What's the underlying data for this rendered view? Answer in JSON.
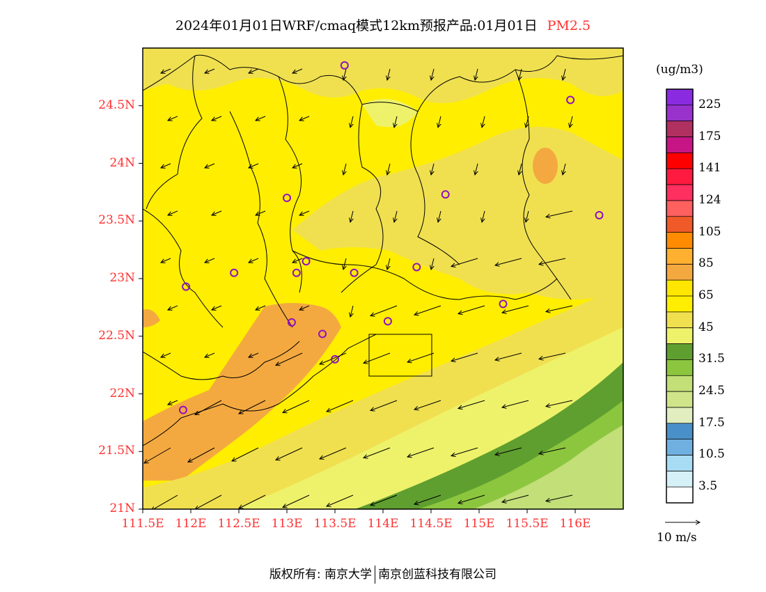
{
  "title": {
    "main": "2024年01月01日WRF/cmaq模式12km预报产品:01月01日",
    "pollutant": "PM2.5"
  },
  "axes": {
    "lat_labels": [
      "24.5N",
      "24N",
      "23.5N",
      "23N",
      "22.5N",
      "22N",
      "21.5N",
      "21N"
    ],
    "lon_labels": [
      "111.5E",
      "112E",
      "112.5E",
      "113E",
      "113.5E",
      "114E",
      "114.5E",
      "115E",
      "115.5E",
      "116E"
    ],
    "lat_range": [
      21.0,
      25.0
    ],
    "lon_range": [
      111.5,
      116.5
    ]
  },
  "colorbar": {
    "unit": "(ug/m3)",
    "labels": [
      "225",
      "175",
      "141",
      "124",
      "105",
      "85",
      "65",
      "45",
      "31.5",
      "24.5",
      "17.5",
      "10.5",
      "3.5"
    ],
    "colors": [
      "#8a2be2",
      "#9932cc",
      "#b03060",
      "#c71585",
      "#ff0000",
      "#ff1a40",
      "#ff3060",
      "#ff6060",
      "#f05a28",
      "#ff8c00",
      "#ffb030",
      "#f4a940",
      "#ffe600",
      "#ffee00",
      "#f0e050",
      "#eef26a",
      "#5f9f2f",
      "#8cc63f",
      "#c2df78",
      "#d0e58a",
      "#e2edc0",
      "#4a90c8",
      "#6fb0e0",
      "#a8dcf5",
      "#d6f0f8",
      "#ffffff"
    ]
  },
  "wind_legend": {
    "label": "10 m/s"
  },
  "footer": {
    "left": "版权所有: 南京大学",
    "right": "南京创蓝科技有限公司"
  },
  "stations": [
    {
      "lon": 113.6,
      "lat": 24.85
    },
    {
      "lon": 115.95,
      "lat": 24.55
    },
    {
      "lon": 113.0,
      "lat": 23.7
    },
    {
      "lon": 114.65,
      "lat": 23.73
    },
    {
      "lon": 116.25,
      "lat": 23.55
    },
    {
      "lon": 112.45,
      "lat": 23.05
    },
    {
      "lon": 113.1,
      "lat": 23.05
    },
    {
      "lon": 113.2,
      "lat": 23.15
    },
    {
      "lon": 113.7,
      "lat": 23.05
    },
    {
      "lon": 114.35,
      "lat": 23.1
    },
    {
      "lon": 111.95,
      "lat": 22.93
    },
    {
      "lon": 115.25,
      "lat": 22.78
    },
    {
      "lon": 113.05,
      "lat": 22.62
    },
    {
      "lon": 114.05,
      "lat": 22.63
    },
    {
      "lon": 113.37,
      "lat": 22.52
    },
    {
      "lon": 113.5,
      "lat": 22.3
    },
    {
      "lon": 111.92,
      "lat": 21.86
    }
  ]
}
